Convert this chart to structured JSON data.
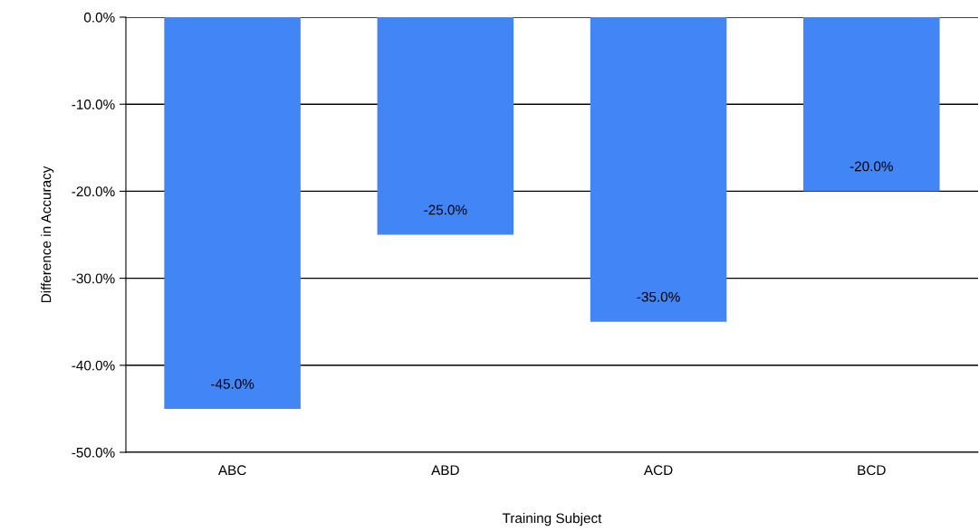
{
  "chart_data": {
    "type": "bar",
    "xlabel": "Training Subject",
    "ylabel": "Difference in Accuracy",
    "categories": [
      "ABC",
      "ABD",
      "ACD",
      "BCD"
    ],
    "values": [
      -45,
      -25,
      -35,
      -20
    ],
    "value_labels": [
      "-45.0%",
      "-25.0%",
      "-35.0%",
      "-20.0%"
    ],
    "color": "#4285f4",
    "ylim": [
      -50,
      0
    ],
    "yticks": [
      {
        "value": -50,
        "label": "-50.0%"
      },
      {
        "value": -40,
        "label": "-40.0%"
      },
      {
        "value": -30,
        "label": "-30.0%"
      },
      {
        "value": -20,
        "label": "-20.0%"
      },
      {
        "value": -10,
        "label": "-10.0%"
      },
      {
        "value": 0,
        "label": "0.0%"
      }
    ],
    "grid": "y",
    "legend": false
  }
}
